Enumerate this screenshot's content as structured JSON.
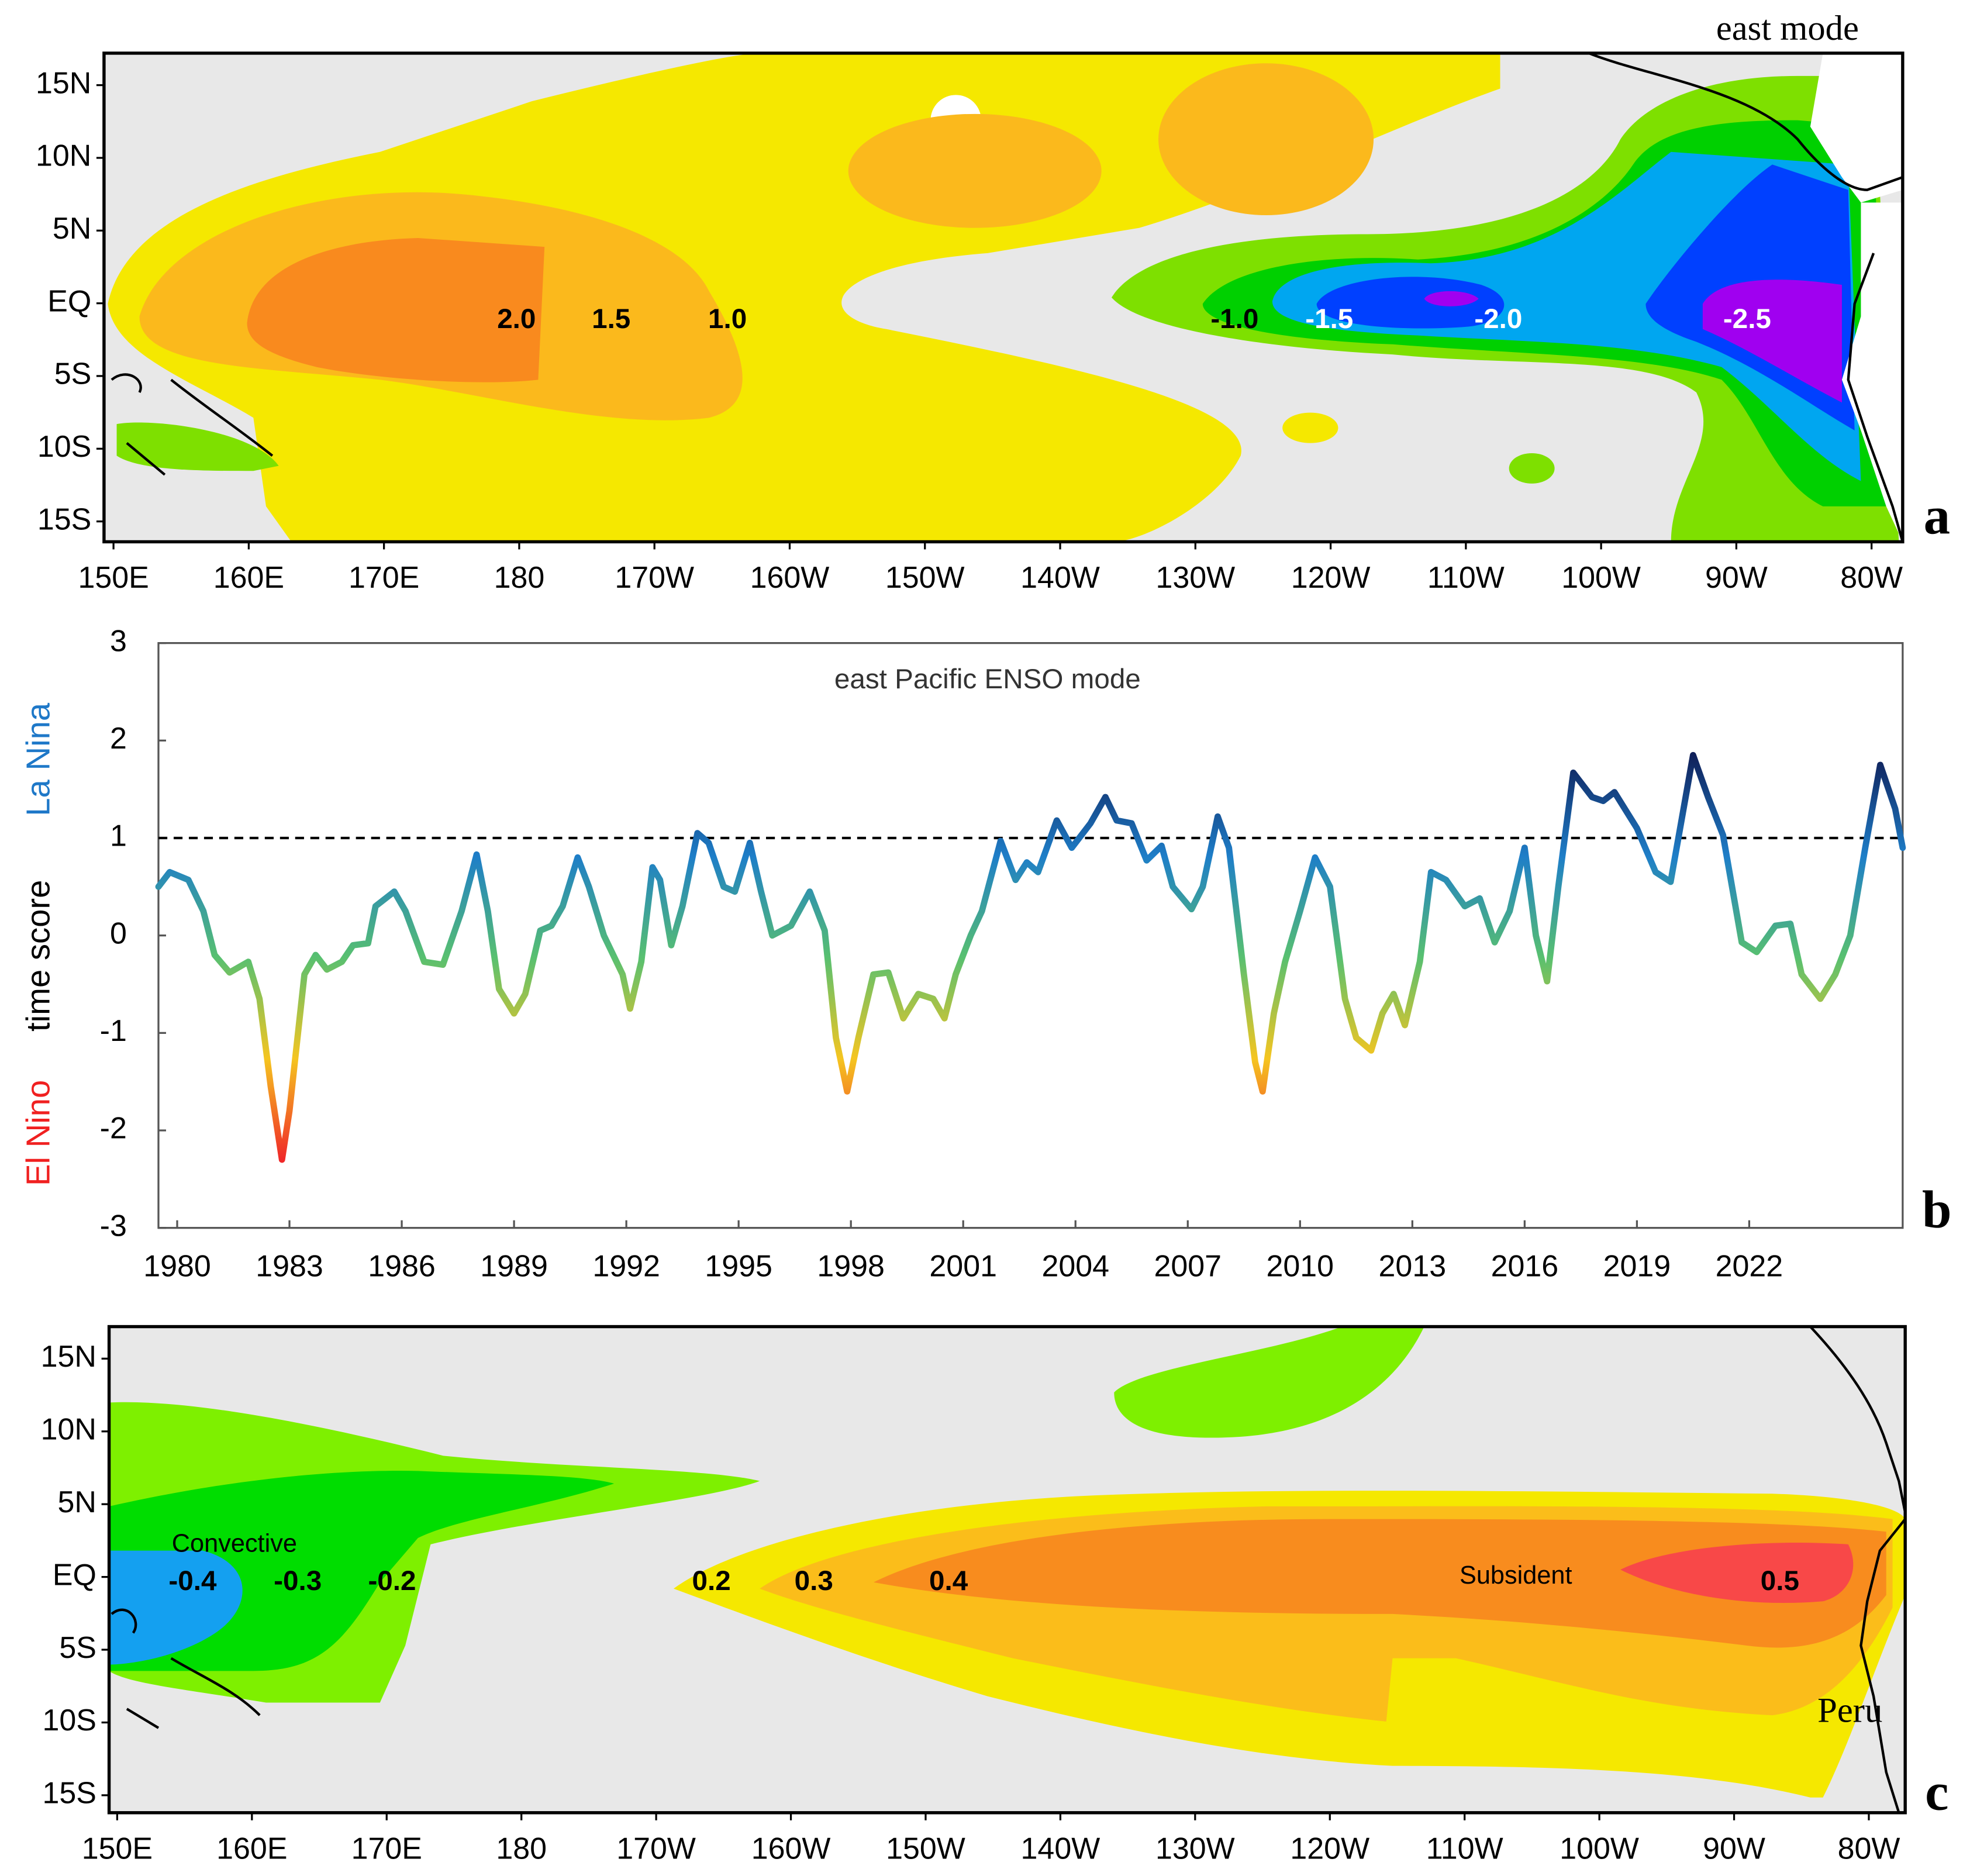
{
  "chart_data": [
    {
      "type": "map",
      "panel": "a",
      "annotation": "east mode",
      "xlim": [
        149.3,
        282.3
      ],
      "ylim": [
        -16.4,
        17.2
      ],
      "xticks": [
        {
          "value": 150,
          "label": "150E"
        },
        {
          "value": 160,
          "label": "160E"
        },
        {
          "value": 170,
          "label": "170E"
        },
        180,
        {
          "value": 190,
          "label": "170W"
        },
        {
          "value": 200,
          "label": "160W"
        },
        {
          "value": 210,
          "label": "150W"
        },
        {
          "value": 220,
          "label": "140W"
        },
        {
          "value": 230,
          "label": "130W"
        },
        {
          "value": 240,
          "label": "120W"
        },
        {
          "value": 250,
          "label": "110W"
        },
        {
          "value": 260,
          "label": "100W"
        },
        {
          "value": 270,
          "label": "90W"
        },
        {
          "value": 280,
          "label": "80W"
        }
      ],
      "yticks": [
        {
          "value": 15,
          "label": "15N"
        },
        {
          "value": 10,
          "label": "10N"
        },
        {
          "value": 5,
          "label": "5N"
        },
        {
          "value": 0,
          "label": "EQ"
        },
        {
          "value": -5,
          "label": "5S"
        },
        {
          "value": -10,
          "label": "10S"
        },
        {
          "value": -15,
          "label": "15S"
        }
      ],
      "contour_labels": [
        {
          "value": 2,
          "label": "2.0",
          "lon": 179.8,
          "lat": -1.2,
          "color": "#000000"
        },
        {
          "value": 1.5,
          "label": "1.5",
          "lon": 186.8,
          "lat": -1.2,
          "color": "#000000"
        },
        {
          "value": 1,
          "label": "1.0",
          "lon": 195.4,
          "lat": -1.2,
          "color": "#000000"
        },
        {
          "value": -1,
          "label": "-1.0",
          "lon": 232.9,
          "lat": -1.2,
          "color": "#000000"
        },
        {
          "value": -1.5,
          "label": "-1.5",
          "lon": 239.9,
          "lat": -1.2,
          "color": "#ffffff"
        },
        {
          "value": -2,
          "label": "-2.0",
          "lon": 252.4,
          "lat": -1.2,
          "color": "#ffffff"
        },
        {
          "value": -2.5,
          "label": "-2.5",
          "lon": 270.8,
          "lat": -1.2,
          "color": "#ffffff"
        }
      ]
    },
    {
      "type": "line",
      "panel": "b",
      "title": "east Pacific ENSO mode",
      "ylabel": [
        {
          "text": "La Nina",
          "color": "#1e78c8"
        },
        {
          "text": "time score",
          "color": "#000000"
        },
        {
          "text": "El Nino",
          "color": "#f02020"
        }
      ],
      "xlim": [
        1979.5,
        2026.1
      ],
      "ylim": [
        -3,
        3
      ],
      "xticks": [
        1980,
        1983,
        1986,
        1989,
        1992,
        1995,
        1998,
        2001,
        2004,
        2007,
        2010,
        2013,
        2016,
        2019,
        2022
      ],
      "yticks": [
        -3,
        -2,
        -1,
        0,
        1,
        2,
        3
      ],
      "reference_line": 1,
      "colors": [
        "#10205a",
        "#1e7ec8",
        "#58c070",
        "#f5c520",
        "#f02828"
      ],
      "x": [
        1979.5,
        1979.8,
        1980.3,
        1980.7,
        1981.0,
        1981.4,
        1981.9,
        1982.2,
        1982.5,
        1982.8,
        1983.0,
        1983.4,
        1983.7,
        1984.0,
        1984.4,
        1984.7,
        1985.1,
        1985.3,
        1985.8,
        1986.1,
        1986.6,
        1987.1,
        1987.6,
        1988.0,
        1988.3,
        1988.6,
        1989.0,
        1989.3,
        1989.7,
        1990.0,
        1990.3,
        1990.7,
        1991.0,
        1991.4,
        1991.9,
        1992.1,
        1992.4,
        1992.7,
        1992.9,
        1993.2,
        1993.5,
        1993.9,
        1994.2,
        1994.6,
        1994.9,
        1995.3,
        1995.6,
        1995.9,
        1996.4,
        1996.9,
        1997.3,
        1997.6,
        1997.9,
        1998.2,
        1998.6,
        1999.0,
        1999.4,
        1999.8,
        2000.2,
        2000.5,
        2000.8,
        2001.2,
        2001.5,
        2002.0,
        2002.4,
        2002.7,
        2003.0,
        2003.5,
        2003.9,
        2004.4,
        2004.8,
        2005.1,
        2005.5,
        2005.9,
        2006.3,
        2006.6,
        2007.1,
        2007.4,
        2007.8,
        2008.1,
        2008.5,
        2008.8,
        2009.0,
        2009.3,
        2009.6,
        2010.0,
        2010.4,
        2010.8,
        2011.2,
        2011.5,
        2011.9,
        2012.2,
        2012.5,
        2012.8,
        2013.2,
        2013.5,
        2013.9,
        2014.4,
        2014.8,
        2015.2,
        2015.6,
        2016.0,
        2016.3,
        2016.6,
        2016.9,
        2017.3,
        2017.8,
        2018.1,
        2018.4,
        2019.0,
        2019.5,
        2019.9,
        2020.5,
        2020.9,
        2021.3,
        2021.8,
        2022.2,
        2022.7,
        2023.1,
        2023.4,
        2023.9,
        2024.3,
        2024.7,
        2025.1,
        2025.5,
        2025.9,
        2026.1
      ],
      "values": [
        0.5,
        0.65,
        0.57,
        0.25,
        -0.2,
        -0.38,
        -0.27,
        -0.65,
        -1.55,
        -2.3,
        -1.8,
        -0.4,
        -0.2,
        -0.35,
        -0.27,
        -0.1,
        -0.08,
        0.3,
        0.45,
        0.25,
        -0.27,
        -0.3,
        0.25,
        0.83,
        0.25,
        -0.55,
        -0.8,
        -0.6,
        0.05,
        0.1,
        0.3,
        0.8,
        0.5,
        0,
        -0.4,
        -0.75,
        -0.27,
        0.7,
        0.57,
        -0.1,
        0.3,
        1.05,
        0.95,
        0.5,
        0.45,
        0.95,
        0.45,
        0,
        0.1,
        0.45,
        0.05,
        -1.05,
        -1.6,
        -1.05,
        -0.4,
        -0.38,
        -0.85,
        -0.6,
        -0.65,
        -0.85,
        -0.4,
        0,
        0.25,
        0.97,
        0.57,
        0.75,
        0.65,
        1.18,
        0.9,
        1.15,
        1.42,
        1.18,
        1.15,
        0.77,
        0.92,
        0.5,
        0.27,
        0.5,
        1.22,
        0.9,
        -0.4,
        -1.3,
        -1.6,
        -0.8,
        -0.27,
        0.25,
        0.8,
        0.5,
        -0.65,
        -1.05,
        -1.18,
        -0.8,
        -0.6,
        -0.92,
        -0.27,
        0.65,
        0.57,
        0.3,
        0.38,
        -0.07,
        0.25,
        0.9,
        0,
        -0.47,
        0.5,
        1.67,
        1.42,
        1.38,
        1.47,
        1.1,
        0.65,
        0.55,
        1.85,
        1.42,
        1.03,
        -0.07,
        -0.17,
        0.1,
        0.12,
        -0.4,
        -0.65,
        -0.4,
        0,
        0.9,
        1.75,
        1.3,
        0.9
      ]
    },
    {
      "type": "map",
      "panel": "c",
      "xlim": [
        149.4,
        282.7
      ],
      "ylim": [
        -16.2,
        17.2
      ],
      "xticks": [
        {
          "value": 150,
          "label": "150E"
        },
        {
          "value": 160,
          "label": "160E"
        },
        {
          "value": 170,
          "label": "170E"
        },
        180,
        {
          "value": 190,
          "label": "170W"
        },
        {
          "value": 200,
          "label": "160W"
        },
        {
          "value": 210,
          "label": "150W"
        },
        {
          "value": 220,
          "label": "140W"
        },
        {
          "value": 230,
          "label": "130W"
        },
        {
          "value": 240,
          "label": "120W"
        },
        {
          "value": 250,
          "label": "110W"
        },
        {
          "value": 260,
          "label": "100W"
        },
        {
          "value": 270,
          "label": "90W"
        },
        {
          "value": 280,
          "label": "80W"
        }
      ],
      "yticks": [
        {
          "value": 15,
          "label": "15N"
        },
        {
          "value": 10,
          "label": "10N"
        },
        {
          "value": 5,
          "label": "5N"
        },
        {
          "value": 0,
          "label": "EQ"
        },
        {
          "value": -5,
          "label": "5S"
        },
        {
          "value": -10,
          "label": "10S"
        },
        {
          "value": -15,
          "label": "15S"
        }
      ],
      "contour_labels": [
        {
          "value": -0.4,
          "label": "-0.4",
          "lon": 155.6,
          "lat": -0.4,
          "color": "#000000"
        },
        {
          "value": -0.3,
          "label": "-0.3",
          "lon": 163.4,
          "lat": -0.4,
          "color": "#000000"
        },
        {
          "value": -0.2,
          "label": "-0.2",
          "lon": 170.4,
          "lat": -0.4,
          "color": "#000000"
        },
        {
          "value": 0.2,
          "label": "0.2",
          "lon": 194.1,
          "lat": -0.4,
          "color": "#000000"
        },
        {
          "value": 0.3,
          "label": "0.3",
          "lon": 201.7,
          "lat": -0.4,
          "color": "#000000"
        },
        {
          "value": 0.4,
          "label": "0.4",
          "lon": 211.7,
          "lat": -0.4,
          "color": "#000000"
        },
        {
          "value": 0.5,
          "label": "0.5",
          "lon": 273.4,
          "lat": -0.4,
          "color": "#000000"
        }
      ],
      "annotations": [
        {
          "text": "Convective",
          "lon": 158.7,
          "lat": 2.2
        },
        {
          "text": "Subsident",
          "lon": 253.8,
          "lat": 0
        },
        {
          "text": "Peru",
          "lon": 278.6,
          "lat": -9.4
        }
      ]
    }
  ]
}
